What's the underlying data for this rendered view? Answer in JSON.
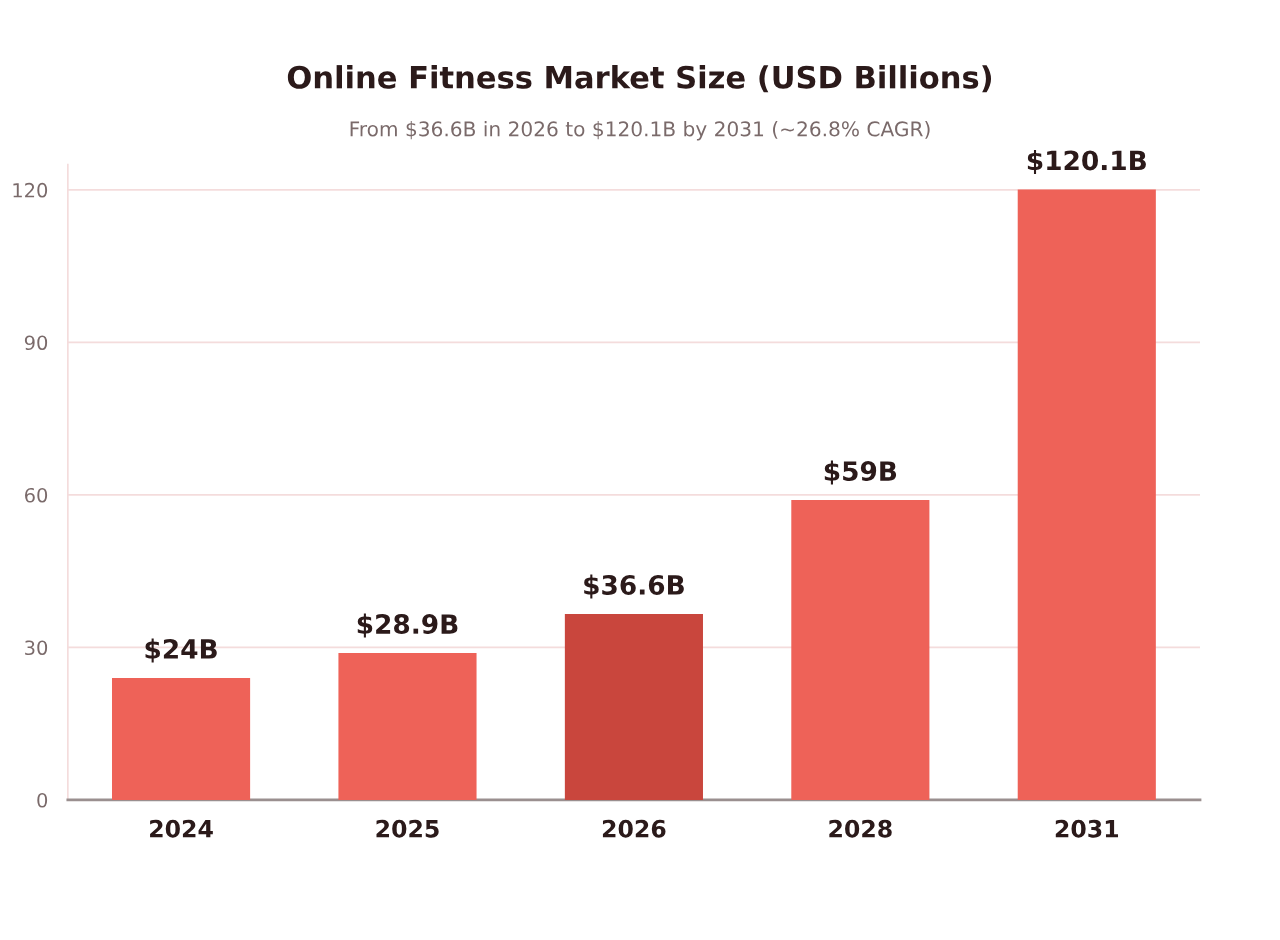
{
  "chart_data": {
    "type": "bar",
    "title": "Online Fitness Market Size (USD Billions)",
    "subtitle": "From $36.6B in 2026 to $120.1B by 2031 (~26.8% CAGR)",
    "categories": [
      "2024",
      "2025",
      "2026",
      "2028",
      "2031"
    ],
    "values": [
      24,
      28.9,
      36.6,
      59,
      120.1
    ],
    "colors": [
      "#ee6258",
      "#ee6258",
      "#c9463d",
      "#ee6258",
      "#ee6258"
    ],
    "value_labels": [
      "$24B",
      "$28.9B",
      "$36.6B",
      "$59B",
      "$120.1B"
    ],
    "ylim": [
      0,
      125
    ],
    "yticks": [
      0,
      30,
      60,
      90,
      120
    ],
    "grid": "y",
    "legend": false
  }
}
